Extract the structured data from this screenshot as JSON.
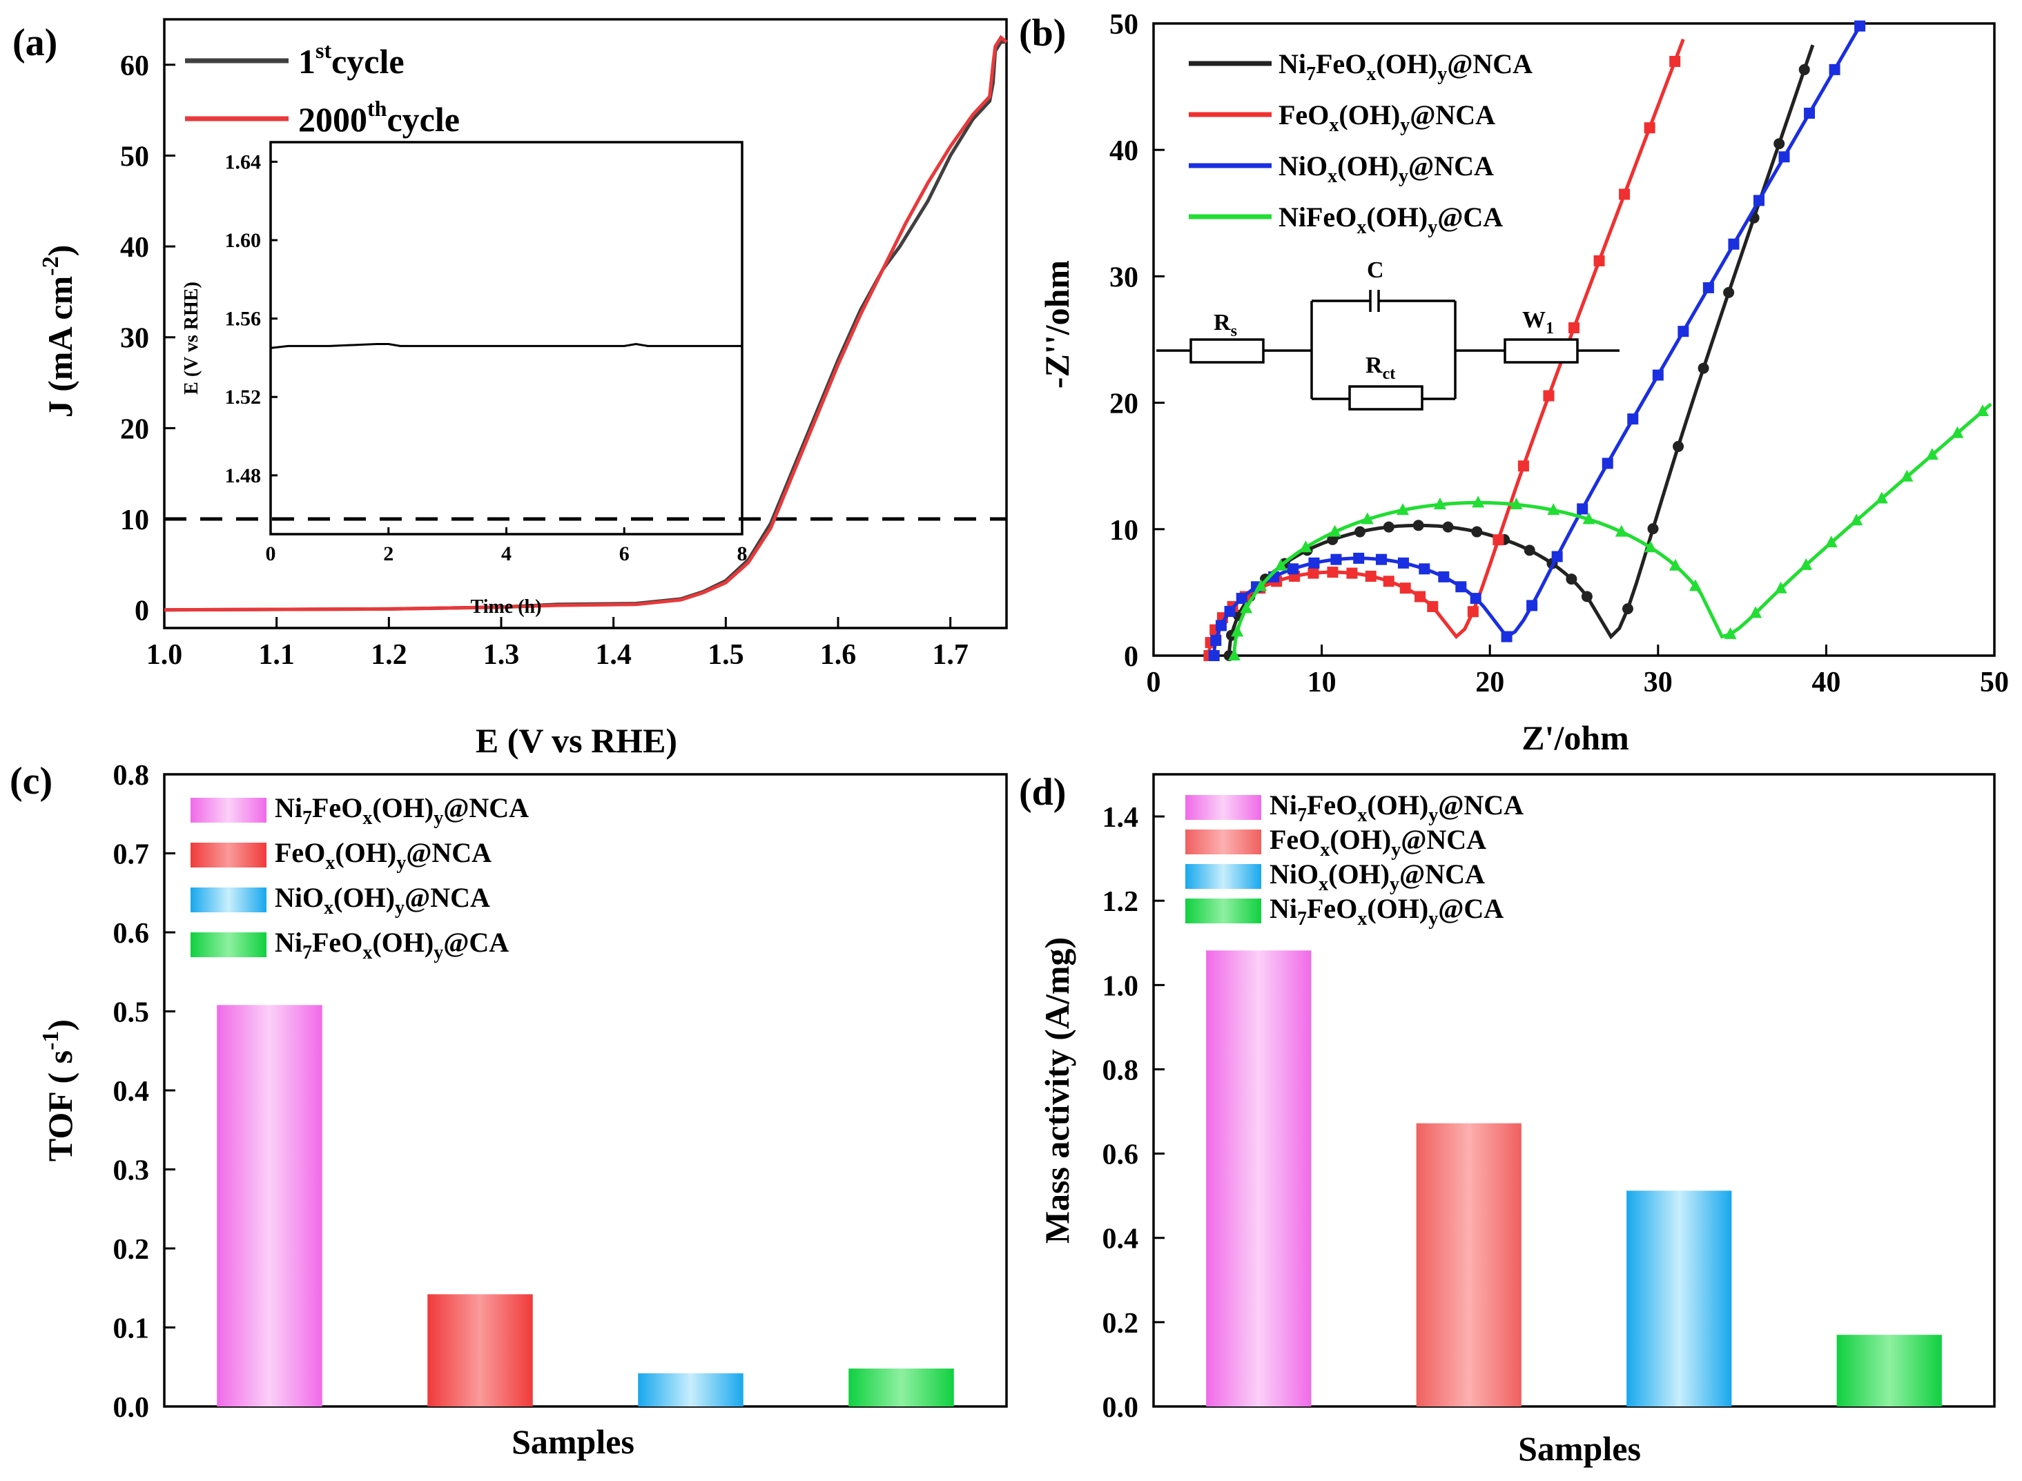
{
  "figure": {
    "panel_labels": [
      "(a)",
      "(b)",
      "(c)",
      "(d)"
    ]
  },
  "chart_data": [
    {
      "id": "a",
      "type": "line",
      "xlabel": "E (V vs RHE)",
      "ylabel": "J (mA cm",
      "ylabel_sup": "-2",
      "ylabel_end": ")",
      "xlim": [
        1.0,
        1.75
      ],
      "ylim": [
        -2,
        65
      ],
      "xticks": [
        1.0,
        1.1,
        1.2,
        1.3,
        1.4,
        1.5,
        1.6,
        1.7
      ],
      "xtick_labels": [
        "1.0",
        "1.1",
        "1.2",
        "1.3",
        "1.4",
        "1.5",
        "1.6",
        "1.7"
      ],
      "yticks": [
        0,
        10,
        20,
        30,
        40,
        50,
        60
      ],
      "ytick_labels": [
        "0",
        "10",
        "20",
        "30",
        "40",
        "50",
        "60"
      ],
      "reference_line_y": 10,
      "series": [
        {
          "name": "1st cycle",
          "label_main": "1",
          "label_sup": "st",
          "label_end": "cycle",
          "color": "#404040",
          "x": [
            1.0,
            1.2,
            1.3,
            1.35,
            1.42,
            1.46,
            1.48,
            1.5,
            1.52,
            1.54,
            1.56,
            1.58,
            1.6,
            1.62,
            1.64,
            1.655,
            1.66,
            1.68,
            1.7,
            1.72,
            1.735,
            1.738,
            1.74,
            1.745,
            1.75
          ],
          "y": [
            0,
            0.1,
            0.3,
            0.6,
            0.7,
            1.2,
            2.0,
            3.2,
            5.5,
            9.5,
            15.5,
            21.5,
            27.5,
            33.0,
            37.5,
            40.0,
            41.0,
            45.0,
            50.0,
            54.0,
            56.0,
            58.0,
            61.5,
            62.5,
            62.5
          ]
        },
        {
          "name": "2000th cycle",
          "label_main": "2000",
          "label_sup": "th",
          "label_end": "cycle",
          "color": "#e8393b",
          "x": [
            1.0,
            1.2,
            1.3,
            1.35,
            1.42,
            1.46,
            1.48,
            1.5,
            1.52,
            1.54,
            1.56,
            1.58,
            1.6,
            1.62,
            1.64,
            1.66,
            1.68,
            1.7,
            1.72,
            1.735,
            1.738,
            1.74,
            1.745,
            1.75
          ],
          "y": [
            0,
            0.1,
            0.3,
            0.5,
            0.6,
            1.1,
            1.9,
            3.0,
            5.2,
            9.0,
            15.0,
            21.0,
            27.0,
            32.5,
            37.5,
            42.5,
            47.0,
            51.0,
            54.5,
            56.5,
            60.0,
            62.0,
            63.0,
            62.5
          ]
        }
      ],
      "inset": {
        "xlabel": "Time (h)",
        "ylabel": "E (V vs RHE)",
        "xlim": [
          0,
          8
        ],
        "ylim": [
          1.45,
          1.65
        ],
        "xticks": [
          0,
          2,
          4,
          6,
          8
        ],
        "xtick_labels": [
          "0",
          "2",
          "4",
          "6",
          "8"
        ],
        "yticks": [
          1.48,
          1.52,
          1.56,
          1.6,
          1.64
        ],
        "ytick_labels": [
          "1.48",
          "1.52",
          "1.56",
          "1.60",
          "1.64"
        ],
        "series": {
          "x": [
            0,
            0.3,
            1,
            1.8,
            2,
            2.2,
            3,
            4,
            5,
            6,
            6.2,
            6.4,
            7,
            8
          ],
          "y": [
            1.545,
            1.546,
            1.546,
            1.547,
            1.547,
            1.546,
            1.546,
            1.546,
            1.546,
            1.546,
            1.547,
            1.546,
            1.546,
            1.546
          ]
        }
      }
    },
    {
      "id": "b",
      "type": "scatter",
      "xlabel": "Z'/ohm",
      "ylabel": "-Z''/ohm",
      "xlim": [
        0,
        50
      ],
      "ylim": [
        0,
        50
      ],
      "xticks": [
        0,
        10,
        20,
        30,
        40,
        50
      ],
      "xtick_labels": [
        "0",
        "10",
        "20",
        "30",
        "40",
        "50"
      ],
      "yticks": [
        0,
        10,
        20,
        30,
        40,
        50
      ],
      "ytick_labels": [
        "0",
        "10",
        "20",
        "30",
        "40",
        "50"
      ],
      "circuit_labels": {
        "rs": "R",
        "rs_sub": "s",
        "c": "C",
        "rct": "R",
        "rct_sub": "ct",
        "w": "W",
        "w_sub": "1"
      },
      "series": [
        {
          "name": "Ni7FeOx(OH)y@NCA",
          "parts": [
            [
              "Ni",
              ""
            ],
            [
              "7",
              "sub"
            ],
            [
              "FeO",
              ""
            ],
            [
              "x",
              "sub"
            ],
            [
              "(OH)",
              ""
            ],
            [
              "y",
              "sub"
            ],
            [
              "@NCA",
              ""
            ]
          ],
          "color": "#222222",
          "marker": "circle",
          "rs": 4.5,
          "rct": 22.5,
          "tail_x": 27.2,
          "tail_slope": 3.9,
          "peak": 10.3
        },
        {
          "name": "FeOx(OH)y@NCA",
          "parts": [
            [
              "FeO",
              ""
            ],
            [
              "x",
              "sub"
            ],
            [
              "(OH)",
              ""
            ],
            [
              "y",
              "sub"
            ],
            [
              "@NCA",
              ""
            ]
          ],
          "color": "#f03030",
          "marker": "square",
          "rs": 3.3,
          "rct": 14.7,
          "tail_x": 18.0,
          "tail_slope": 3.5,
          "peak": 6.6
        },
        {
          "name": "NiOx(OH)y@NCA",
          "parts": [
            [
              "NiO",
              ""
            ],
            [
              "x",
              "sub"
            ],
            [
              "(OH)",
              ""
            ],
            [
              "y",
              "sub"
            ],
            [
              "@NCA",
              ""
            ]
          ],
          "color": "#1a2fe0",
          "marker": "square",
          "rs": 3.6,
          "rct": 17.2,
          "tail_x": 21.0,
          "tail_slope": 2.3,
          "peak": 7.7
        },
        {
          "name": "NiFeOx(OH)y@CA",
          "parts": [
            [
              "NiFeO",
              ""
            ],
            [
              "x",
              "sub"
            ],
            [
              "(OH)",
              ""
            ],
            [
              "y",
              "sub"
            ],
            [
              "@CA",
              ""
            ]
          ],
          "color": "#22dd33",
          "marker": "triangle",
          "rs": 4.8,
          "rct": 29.0,
          "tail_x": 33.8,
          "tail_slope": 1.15,
          "peak": 12.1
        }
      ]
    },
    {
      "id": "c",
      "type": "bar",
      "xlabel": "Samples",
      "ylabel": "TOF ( s",
      "ylabel_sup": "-1",
      "ylabel_end": ")",
      "ylim": [
        0,
        0.8
      ],
      "yticks": [
        0.0,
        0.1,
        0.2,
        0.3,
        0.4,
        0.5,
        0.6,
        0.7,
        0.8
      ],
      "ytick_labels": [
        "0.0",
        "0.1",
        "0.2",
        "0.3",
        "0.4",
        "0.5",
        "0.6",
        "0.7",
        "0.8"
      ],
      "categories": [
        "Ni7FeOx(OH)y@NCA",
        "FeOx(OH)y@NCA",
        "NiOx(OH)y@NCA",
        "Ni7FeOx(OH)y@CA"
      ],
      "values": [
        0.508,
        0.142,
        0.042,
        0.048
      ],
      "colors": [
        "#f590f0",
        "#f25f5f",
        "#33bbee",
        "#28e050"
      ],
      "legend_parts": [
        [
          [
            "Ni",
            ""
          ],
          [
            "7",
            "sub"
          ],
          [
            "FeO",
            ""
          ],
          [
            "x",
            "sub"
          ],
          [
            "(OH)",
            ""
          ],
          [
            "y",
            "sub"
          ],
          [
            "@NCA",
            ""
          ]
        ],
        [
          [
            "FeO",
            ""
          ],
          [
            "x",
            "sub"
          ],
          [
            "(OH)",
            ""
          ],
          [
            "y",
            "sub"
          ],
          [
            "@NCA",
            ""
          ]
        ],
        [
          [
            "NiO",
            ""
          ],
          [
            "x",
            "sub"
          ],
          [
            "(OH)",
            ""
          ],
          [
            "y",
            "sub"
          ],
          [
            "@NCA",
            ""
          ]
        ],
        [
          [
            "Ni",
            ""
          ],
          [
            "7",
            "sub"
          ],
          [
            "FeO",
            ""
          ],
          [
            "x",
            "sub"
          ],
          [
            "(OH)",
            ""
          ],
          [
            "y",
            "sub"
          ],
          [
            "@CA",
            ""
          ]
        ]
      ]
    },
    {
      "id": "d",
      "type": "bar",
      "xlabel": "Samples",
      "ylabel": "Mass activity (A/mg)",
      "ylim": [
        0,
        1.5
      ],
      "yticks": [
        0.0,
        0.2,
        0.4,
        0.6,
        0.8,
        1.0,
        1.2,
        1.4
      ],
      "ytick_labels": [
        "0.0",
        "0.2",
        "0.4",
        "0.6",
        "0.8",
        "1.0",
        "1.2",
        "1.4"
      ],
      "categories": [
        "Ni7FeOx(OH)y@NCA",
        "FeOx(OH)y@NCA",
        "NiOx(OH)y@NCA",
        "Ni7FeOx(OH)y@CA"
      ],
      "values": [
        1.082,
        0.672,
        0.512,
        0.17
      ],
      "colors": [
        "#f590f0",
        "#f88080",
        "#33bbee",
        "#28e050"
      ],
      "legend_parts": [
        [
          [
            "Ni",
            ""
          ],
          [
            "7",
            "sub"
          ],
          [
            "FeO",
            ""
          ],
          [
            "x",
            "sub"
          ],
          [
            "(OH)",
            ""
          ],
          [
            "y",
            "sub"
          ],
          [
            "@NCA",
            ""
          ]
        ],
        [
          [
            "FeO",
            ""
          ],
          [
            "x",
            "sub"
          ],
          [
            "(OH)",
            ""
          ],
          [
            "y",
            "sub"
          ],
          [
            "@NCA",
            ""
          ]
        ],
        [
          [
            "NiO",
            ""
          ],
          [
            "x",
            "sub"
          ],
          [
            "(OH)",
            ""
          ],
          [
            "y",
            "sub"
          ],
          [
            "@NCA",
            ""
          ]
        ],
        [
          [
            "Ni",
            ""
          ],
          [
            "7",
            "sub"
          ],
          [
            "FeO",
            ""
          ],
          [
            "x",
            "sub"
          ],
          [
            "(OH)",
            ""
          ],
          [
            "y",
            "sub"
          ],
          [
            "@CA",
            ""
          ]
        ]
      ]
    }
  ]
}
